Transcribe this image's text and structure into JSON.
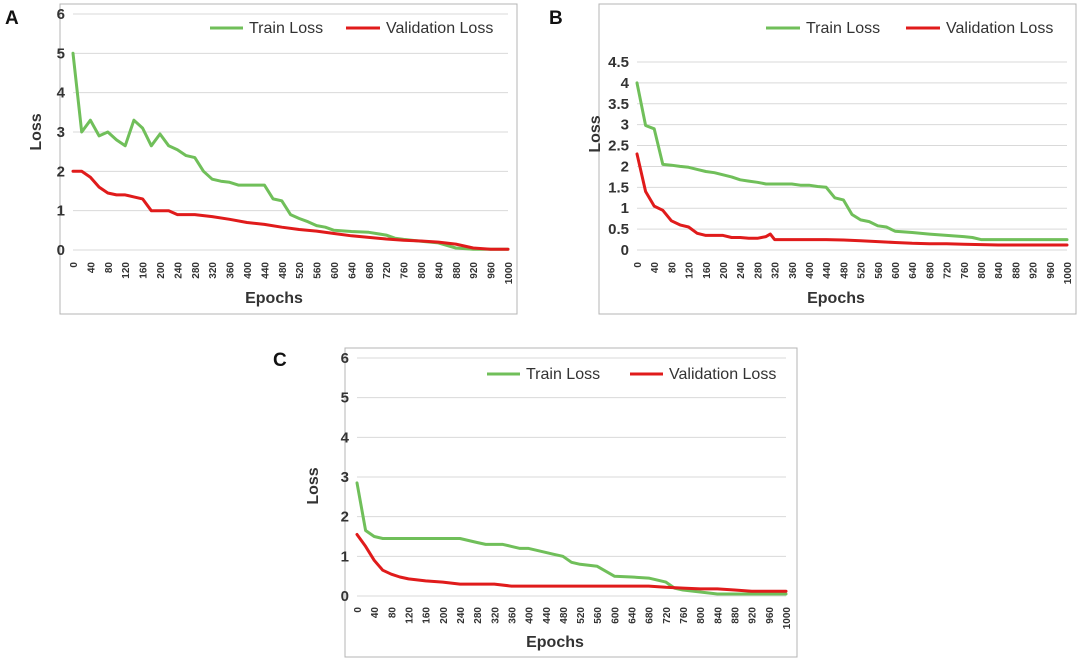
{
  "colors": {
    "train": "#70bf5a",
    "validation": "#e01b1b"
  },
  "chart_data": [
    {
      "type": "line",
      "panel": "A",
      "xlabel": "Epochs",
      "ylabel": "Loss",
      "ylim": [
        0,
        6
      ],
      "xlim": [
        0,
        1000
      ],
      "yticks": [
        "0",
        "1",
        "2",
        "3",
        "4",
        "5",
        "6"
      ],
      "xticks": [
        "0",
        "40",
        "80",
        "120",
        "160",
        "200",
        "240",
        "280",
        "320",
        "360",
        "400",
        "440",
        "480",
        "520",
        "560",
        "600",
        "640",
        "680",
        "720",
        "760",
        "800",
        "840",
        "880",
        "920",
        "960",
        "1000"
      ],
      "legend": [
        "Train Loss",
        "Validation Loss"
      ],
      "series": [
        {
          "name": "Train Loss",
          "x": [
            0,
            20,
            40,
            60,
            80,
            100,
            120,
            140,
            160,
            180,
            200,
            220,
            240,
            260,
            280,
            300,
            320,
            340,
            360,
            380,
            400,
            420,
            440,
            460,
            480,
            500,
            520,
            540,
            560,
            580,
            600,
            640,
            680,
            720,
            740,
            760,
            800,
            840,
            880,
            920,
            960,
            1000
          ],
          "y": [
            5.0,
            3.0,
            3.3,
            2.9,
            3.0,
            2.8,
            2.65,
            3.3,
            3.1,
            2.65,
            2.95,
            2.65,
            2.55,
            2.4,
            2.35,
            2.0,
            1.8,
            1.75,
            1.72,
            1.65,
            1.65,
            1.65,
            1.65,
            1.3,
            1.25,
            0.9,
            0.8,
            0.72,
            0.62,
            0.58,
            0.5,
            0.47,
            0.45,
            0.38,
            0.3,
            0.27,
            0.22,
            0.18,
            0.05,
            0.02,
            0.02,
            0.02
          ]
        },
        {
          "name": "Validation Loss",
          "x": [
            0,
            20,
            40,
            60,
            80,
            100,
            120,
            140,
            160,
            180,
            200,
            220,
            240,
            260,
            280,
            320,
            360,
            400,
            440,
            480,
            520,
            560,
            600,
            640,
            680,
            720,
            760,
            800,
            840,
            880,
            920,
            960,
            1000
          ],
          "y": [
            2.0,
            2.0,
            1.85,
            1.6,
            1.45,
            1.4,
            1.4,
            1.35,
            1.3,
            1.0,
            1.0,
            1.0,
            0.9,
            0.9,
            0.9,
            0.85,
            0.78,
            0.7,
            0.65,
            0.58,
            0.52,
            0.48,
            0.42,
            0.36,
            0.32,
            0.28,
            0.25,
            0.23,
            0.2,
            0.15,
            0.05,
            0.02,
            0.02
          ]
        }
      ]
    },
    {
      "type": "line",
      "panel": "B",
      "xlabel": "Epochs",
      "ylabel": "Loss",
      "ylim": [
        0,
        4.5
      ],
      "xlim": [
        0,
        1000
      ],
      "yticks": [
        "0",
        "0.5",
        "1",
        "1.5",
        "2",
        "2.5",
        "3",
        "3.5",
        "4",
        "4.5"
      ],
      "xticks": [
        "0",
        "40",
        "80",
        "120",
        "160",
        "200",
        "240",
        "280",
        "320",
        "360",
        "400",
        "440",
        "480",
        "520",
        "560",
        "600",
        "640",
        "680",
        "720",
        "760",
        "800",
        "840",
        "880",
        "920",
        "960",
        "1000"
      ],
      "legend": [
        "Train Loss",
        "Validation Loss"
      ],
      "series": [
        {
          "name": "Train Loss",
          "x": [
            0,
            20,
            40,
            60,
            80,
            100,
            120,
            140,
            160,
            180,
            200,
            220,
            240,
            260,
            280,
            300,
            320,
            340,
            360,
            380,
            400,
            420,
            440,
            460,
            480,
            500,
            520,
            540,
            560,
            580,
            600,
            640,
            680,
            720,
            760,
            780,
            800,
            840,
            880,
            920,
            960,
            1000
          ],
          "y": [
            4.0,
            2.98,
            2.9,
            2.05,
            2.03,
            2.0,
            1.98,
            1.93,
            1.88,
            1.85,
            1.8,
            1.75,
            1.68,
            1.65,
            1.62,
            1.58,
            1.58,
            1.58,
            1.58,
            1.55,
            1.55,
            1.52,
            1.5,
            1.25,
            1.2,
            0.85,
            0.72,
            0.68,
            0.58,
            0.55,
            0.45,
            0.42,
            0.38,
            0.35,
            0.32,
            0.3,
            0.25,
            0.25,
            0.25,
            0.25,
            0.25,
            0.25
          ]
        },
        {
          "name": "Validation Loss",
          "x": [
            0,
            20,
            40,
            60,
            80,
            100,
            120,
            140,
            160,
            180,
            200,
            220,
            240,
            260,
            280,
            300,
            310,
            320,
            340,
            360,
            400,
            440,
            480,
            520,
            560,
            600,
            640,
            680,
            720,
            760,
            800,
            840,
            880,
            920,
            960,
            1000
          ],
          "y": [
            2.3,
            1.4,
            1.05,
            0.95,
            0.7,
            0.6,
            0.55,
            0.4,
            0.35,
            0.35,
            0.35,
            0.3,
            0.3,
            0.28,
            0.28,
            0.32,
            0.38,
            0.25,
            0.25,
            0.25,
            0.25,
            0.25,
            0.24,
            0.22,
            0.2,
            0.18,
            0.16,
            0.15,
            0.15,
            0.14,
            0.13,
            0.12,
            0.12,
            0.12,
            0.12,
            0.12
          ]
        }
      ]
    },
    {
      "type": "line",
      "panel": "C",
      "xlabel": "Epochs",
      "ylabel": "Loss",
      "ylim": [
        0,
        6
      ],
      "xlim": [
        0,
        1000
      ],
      "yticks": [
        "0",
        "1",
        "2",
        "3",
        "4",
        "5",
        "6"
      ],
      "xticks": [
        "0",
        "40",
        "80",
        "120",
        "160",
        "200",
        "240",
        "280",
        "320",
        "360",
        "400",
        "440",
        "480",
        "520",
        "560",
        "600",
        "640",
        "680",
        "720",
        "760",
        "800",
        "840",
        "880",
        "920",
        "960",
        "1000"
      ],
      "legend": [
        "Train Loss",
        "Validation Loss"
      ],
      "series": [
        {
          "name": "Train Loss",
          "x": [
            0,
            20,
            40,
            60,
            80,
            100,
            120,
            160,
            200,
            240,
            260,
            280,
            300,
            320,
            340,
            360,
            380,
            400,
            420,
            440,
            460,
            480,
            500,
            520,
            560,
            600,
            640,
            680,
            720,
            740,
            760,
            800,
            840,
            880,
            920,
            960,
            1000
          ],
          "y": [
            2.85,
            1.65,
            1.5,
            1.45,
            1.45,
            1.45,
            1.45,
            1.45,
            1.45,
            1.45,
            1.4,
            1.35,
            1.3,
            1.3,
            1.3,
            1.25,
            1.2,
            1.2,
            1.15,
            1.1,
            1.05,
            1.0,
            0.85,
            0.8,
            0.75,
            0.5,
            0.48,
            0.45,
            0.35,
            0.2,
            0.15,
            0.1,
            0.05,
            0.05,
            0.05,
            0.05,
            0.05
          ]
        },
        {
          "name": "Validation Loss",
          "x": [
            0,
            20,
            40,
            60,
            80,
            100,
            120,
            160,
            200,
            240,
            280,
            320,
            360,
            400,
            440,
            480,
            520,
            560,
            600,
            640,
            680,
            720,
            760,
            800,
            840,
            880,
            920,
            960,
            1000
          ],
          "y": [
            1.55,
            1.25,
            0.9,
            0.65,
            0.55,
            0.48,
            0.43,
            0.38,
            0.35,
            0.3,
            0.3,
            0.3,
            0.25,
            0.25,
            0.25,
            0.25,
            0.25,
            0.25,
            0.25,
            0.25,
            0.25,
            0.22,
            0.2,
            0.18,
            0.18,
            0.15,
            0.12,
            0.12,
            0.12
          ]
        }
      ]
    }
  ]
}
